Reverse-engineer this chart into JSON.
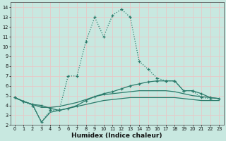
{
  "xlabel": "Humidex (Indice chaleur)",
  "bg_color": "#c8e8e0",
  "grid_color": "#e8c8c8",
  "line_color": "#2a7a6a",
  "xlim": [
    -0.5,
    23.5
  ],
  "ylim": [
    2,
    14.5
  ],
  "xticks": [
    0,
    1,
    2,
    3,
    4,
    5,
    6,
    7,
    8,
    9,
    10,
    11,
    12,
    13,
    14,
    15,
    16,
    17,
    18,
    19,
    20,
    21,
    22,
    23
  ],
  "yticks": [
    2,
    3,
    4,
    5,
    6,
    7,
    8,
    9,
    10,
    11,
    12,
    13,
    14
  ],
  "series": [
    {
      "x": [
        0,
        1,
        2,
        3,
        4,
        5,
        6,
        7,
        8,
        9,
        10,
        11,
        12,
        13,
        14,
        15,
        16,
        17,
        18,
        19,
        20,
        21,
        22
      ],
      "y": [
        4.8,
        4.4,
        4.0,
        2.3,
        3.5,
        3.5,
        7.0,
        7.0,
        10.5,
        13.0,
        11.0,
        13.2,
        13.8,
        13.0,
        8.5,
        7.7,
        6.8,
        6.5,
        6.5,
        5.5,
        5.5,
        4.8,
        4.7
      ],
      "marker": true,
      "dotted": true
    },
    {
      "x": [
        0,
        1,
        2,
        3,
        4,
        5,
        6,
        7,
        8,
        9,
        10,
        11,
        12,
        13,
        14,
        15,
        16,
        17,
        18,
        19,
        20,
        21,
        22,
        23
      ],
      "y": [
        4.8,
        4.4,
        4.1,
        4.0,
        3.7,
        3.5,
        3.7,
        4.0,
        4.5,
        4.9,
        5.2,
        5.4,
        5.7,
        6.0,
        6.2,
        6.4,
        6.5,
        6.5,
        6.5,
        5.5,
        5.5,
        5.2,
        4.8,
        4.7
      ],
      "marker": true,
      "dotted": false
    },
    {
      "x": [
        0,
        1,
        2,
        3,
        4,
        5,
        6,
        7,
        8,
        9,
        10,
        11,
        12,
        13,
        14,
        15,
        16,
        17,
        18,
        19,
        20,
        21,
        22,
        23
      ],
      "y": [
        4.8,
        4.4,
        4.1,
        3.8,
        3.8,
        3.9,
        4.1,
        4.3,
        4.6,
        4.9,
        5.1,
        5.2,
        5.3,
        5.4,
        5.5,
        5.5,
        5.5,
        5.5,
        5.4,
        5.2,
        5.0,
        4.9,
        4.8,
        4.7
      ],
      "marker": false,
      "dotted": false
    },
    {
      "x": [
        0,
        1,
        2,
        3,
        4,
        5,
        6,
        7,
        8,
        9,
        10,
        11,
        12,
        13,
        14,
        15,
        16,
        17,
        18,
        19,
        20,
        21,
        22,
        23
      ],
      "y": [
        4.8,
        4.4,
        4.1,
        2.3,
        3.3,
        3.5,
        3.7,
        3.9,
        4.1,
        4.3,
        4.5,
        4.6,
        4.7,
        4.8,
        4.8,
        4.8,
        4.8,
        4.8,
        4.8,
        4.7,
        4.6,
        4.5,
        4.5,
        4.5
      ],
      "marker": false,
      "dotted": false
    }
  ]
}
